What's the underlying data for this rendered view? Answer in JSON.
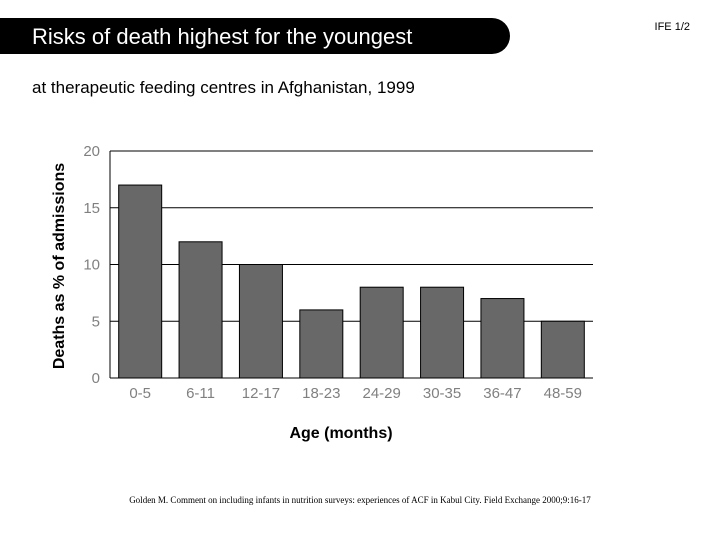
{
  "header": {
    "title": "Risks of death highest for the youngest",
    "slide_id": "IFE 1/2"
  },
  "subtitle": "at therapeutic feeding centres in Afghanistan, 1999",
  "source": "Golden M. Comment on including infants in nutrition surveys: experiences of ACF in Kabul City. Field Exchange 2000;9:16-17",
  "chart_data": {
    "type": "bar",
    "categories": [
      "0-5",
      "6-11",
      "12-17",
      "18-23",
      "24-29",
      "30-35",
      "36-47",
      "48-59"
    ],
    "values": [
      17,
      12,
      10,
      6,
      8,
      8,
      7,
      5
    ],
    "xlabel": "Age (months)",
    "ylabel": "Deaths as % of admissions",
    "ylim": [
      0,
      20
    ],
    "yticks": [
      0,
      5,
      10,
      15,
      20
    ],
    "grid": true,
    "colors": {
      "bar": "#686868",
      "bar_edge": "#000000",
      "grid": "#000000",
      "tick_text": "#808080"
    }
  }
}
